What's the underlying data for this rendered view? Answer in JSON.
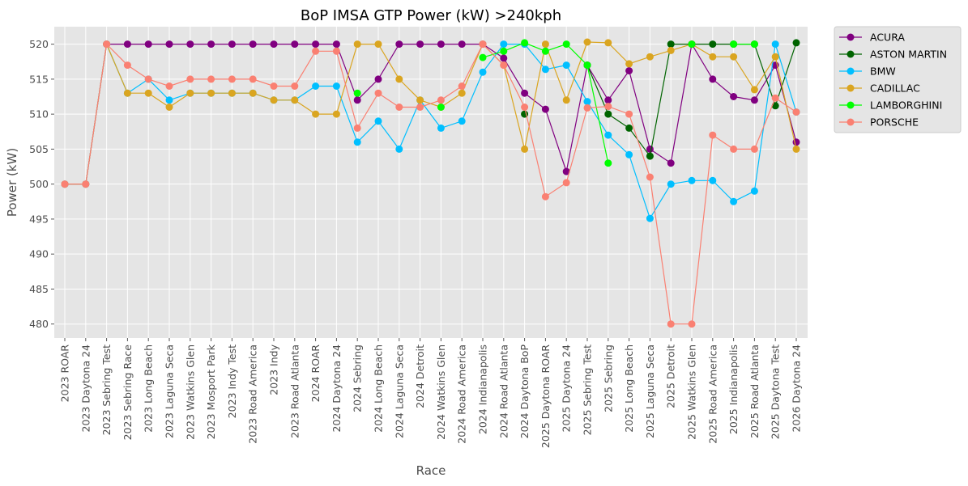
{
  "chart_data": {
    "type": "line",
    "title": "BoP IMSA GTP Power (kW) >240kph",
    "xlabel": "Race",
    "ylabel": "Power (kW)",
    "ylim": [
      478,
      522.5
    ],
    "yticks": [
      480,
      485,
      490,
      495,
      500,
      505,
      510,
      515,
      520
    ],
    "grid": true,
    "legend": "outside-top-right",
    "categories": [
      "2023 ROAR",
      "2023 Daytona 24",
      "2023 Sebring Test",
      "2023 Sebring Race",
      "2023 Long Beach",
      "2023 Laguna Seca",
      "2023 Watkins Glen",
      "2023 Mosport Park",
      "2023 Indy Test",
      "2023 Road America",
      "2023 Indy",
      "2023 Road Atlanta",
      "2024 ROAR",
      "2024 Daytona 24",
      "2024 Sebring",
      "2024 Long Beach",
      "2024 Laguna Seca",
      "2024 Detroit",
      "2024 Watkins Glen",
      "2024 Road America",
      "2024 Indianapolis",
      "2024 Road Atlanta",
      "2024 Daytona BoP",
      "2025 Daytona ROAR",
      "2025 Daytona 24",
      "2025 Sebring Test",
      "2025 Sebring",
      "2025 Long Beach",
      "2025 Laguna Seca",
      "2025 Detroit",
      "2025 Watkins Glen",
      "2025 Road America",
      "2025 Indianapolis",
      "2025 Road Atlanta",
      "2025 Daytona Test",
      "2026 Daytona 24"
    ],
    "series": [
      {
        "name": "ACURA",
        "color": "#800080",
        "values": [
          500,
          500,
          520,
          520,
          520,
          520,
          520,
          520,
          520,
          520,
          520,
          520,
          520,
          520,
          512,
          515,
          520,
          520,
          520,
          520,
          520,
          518,
          513,
          510.7,
          501.8,
          517,
          512,
          516.2,
          505,
          503,
          520,
          515,
          512.5,
          512,
          517,
          506
        ]
      },
      {
        "name": "ASTON MARTIN",
        "color": "#006400",
        "values": [
          null,
          null,
          null,
          null,
          null,
          null,
          null,
          null,
          null,
          null,
          null,
          null,
          null,
          null,
          null,
          null,
          null,
          null,
          null,
          null,
          null,
          null,
          510,
          null,
          null,
          517,
          510,
          508,
          504,
          520,
          520,
          520,
          520,
          520,
          511.2,
          520.2
        ]
      },
      {
        "name": "BMW",
        "color": "#00bfff",
        "values": [
          500,
          500,
          520,
          513,
          515,
          512,
          513,
          513,
          513,
          513,
          512,
          512,
          514,
          514,
          506,
          509,
          505,
          512,
          508,
          509,
          516,
          520,
          520,
          516.4,
          517,
          511.8,
          507,
          504.2,
          495.1,
          500,
          500.5,
          500.5,
          497.5,
          499,
          520,
          510.3
        ]
      },
      {
        "name": "CADILLAC",
        "color": "#daa520",
        "values": [
          500,
          500,
          520,
          513,
          513,
          511,
          513,
          513,
          513,
          513,
          512,
          512,
          510,
          510,
          520,
          520,
          515,
          512,
          511,
          513,
          520,
          517,
          505,
          520,
          512,
          520.3,
          520.2,
          517.2,
          518.2,
          519.1,
          520,
          518.2,
          518.2,
          513.5,
          518.2,
          505
        ]
      },
      {
        "name": "LAMBORGHINI",
        "color": "#00ff00",
        "values": [
          null,
          null,
          null,
          null,
          null,
          null,
          null,
          null,
          null,
          null,
          null,
          null,
          null,
          null,
          513,
          null,
          null,
          null,
          511,
          null,
          518.1,
          519,
          520.2,
          519,
          520,
          517,
          503,
          null,
          null,
          null,
          520,
          null,
          520,
          520,
          null,
          null
        ]
      },
      {
        "name": "PORSCHE",
        "color": "#fa8072",
        "values": [
          500,
          500,
          520,
          517,
          515,
          514,
          515,
          515,
          515,
          515,
          514,
          514,
          519,
          519,
          508,
          513,
          511,
          511,
          512,
          514,
          520,
          517,
          511,
          498.2,
          500.2,
          510.9,
          511.1,
          510,
          501,
          480,
          480,
          507,
          505,
          505,
          512.3,
          510.3
        ]
      }
    ]
  }
}
